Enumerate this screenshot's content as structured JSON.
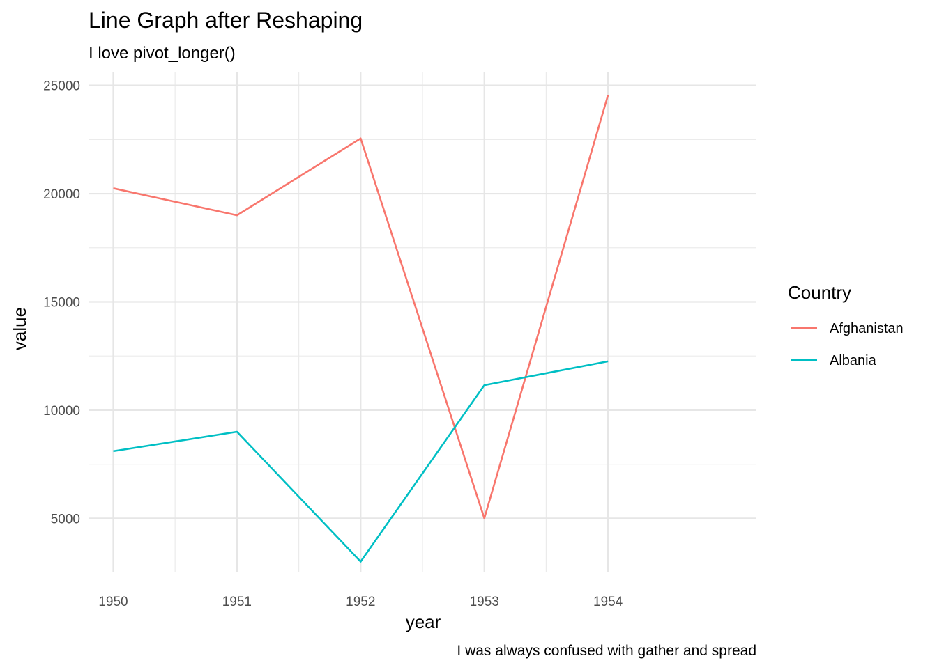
{
  "chart_data": {
    "type": "line",
    "title": "Line Graph after Reshaping",
    "subtitle": "I love pivot_longer()",
    "caption": "I was always confused with gather and spread",
    "xlabel": "year",
    "ylabel": "value",
    "x": [
      1950,
      1951,
      1952,
      1953,
      1954
    ],
    "xlim": [
      1949.8,
      1955.2
    ],
    "ylim": [
      2500,
      25600
    ],
    "xticks": [
      1950,
      1951,
      1952,
      1953,
      1954
    ],
    "yticks": [
      5000,
      10000,
      15000,
      20000,
      25000
    ],
    "grid": true,
    "legend": {
      "title": "Country",
      "position": "right"
    },
    "series": [
      {
        "name": "Afghanistan",
        "color": "#F8766D",
        "values": [
          20250,
          19000,
          22550,
          5000,
          24550
        ]
      },
      {
        "name": "Albania",
        "color": "#00BFC4",
        "values": [
          8100,
          9000,
          3000,
          11150,
          12250
        ]
      }
    ]
  }
}
